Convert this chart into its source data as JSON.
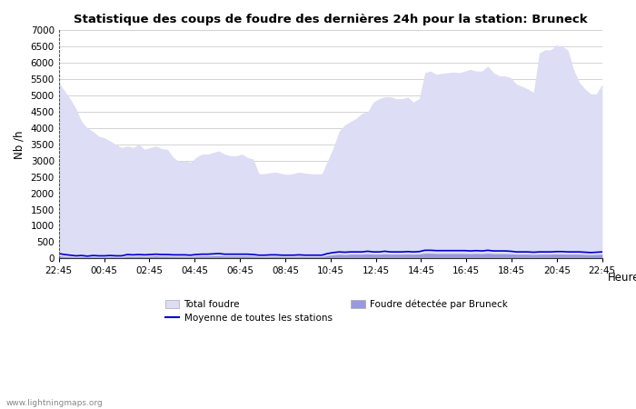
{
  "title": "Statistique des coups de foudre des dernières 24h pour la station: Bruneck",
  "xlabel": "Heure",
  "ylabel": "Nb /h",
  "watermark": "www.lightningmaps.org",
  "xtick_labels": [
    "22:45",
    "00:45",
    "02:45",
    "04:45",
    "06:45",
    "08:45",
    "10:45",
    "12:45",
    "14:45",
    "16:45",
    "18:45",
    "20:45",
    "22:45"
  ],
  "ytick_values": [
    0,
    500,
    1000,
    1500,
    2000,
    2500,
    3000,
    3500,
    4000,
    4500,
    5000,
    5500,
    6000,
    6500,
    7000
  ],
  "ylim": [
    0,
    7000
  ],
  "bg_color": "#ffffff",
  "grid_color": "#cccccc",
  "total_foudre_color": "#ddddf5",
  "bruneck_color": "#9999dd",
  "moyenne_color": "#0000cc",
  "legend_total": "Total foudre",
  "legend_moyenne": "Moyenne de toutes les stations",
  "legend_bruneck": "Foudre détectée par Bruneck",
  "x_values": [
    0,
    1,
    2,
    3,
    4,
    5,
    6,
    7,
    8,
    9,
    10,
    11,
    12,
    13,
    14,
    15,
    16,
    17,
    18,
    19,
    20,
    21,
    22,
    23,
    24,
    25,
    26,
    27,
    28,
    29,
    30,
    31,
    32,
    33,
    34,
    35,
    36,
    37,
    38,
    39,
    40,
    41,
    42,
    43,
    44,
    45,
    46,
    47,
    48,
    49,
    50,
    51,
    52,
    53,
    54,
    55,
    56,
    57,
    58,
    59,
    60,
    61,
    62,
    63,
    64,
    65,
    66,
    67,
    68,
    69,
    70,
    71,
    72,
    73,
    74,
    75,
    76,
    77,
    78,
    79,
    80,
    81,
    82,
    83,
    84,
    85,
    86,
    87,
    88,
    89,
    90,
    91,
    92,
    93,
    94,
    95
  ],
  "total_foudre": [
    5400,
    5150,
    4900,
    4600,
    4200,
    4000,
    3900,
    3750,
    3700,
    3600,
    3500,
    3400,
    3450,
    3400,
    3500,
    3350,
    3400,
    3450,
    3370,
    3350,
    3100,
    2980,
    3000,
    2950,
    3100,
    3200,
    3200,
    3250,
    3300,
    3200,
    3150,
    3150,
    3200,
    3100,
    3050,
    2600,
    2600,
    2630,
    2650,
    2600,
    2580,
    2600,
    2650,
    2620,
    2600,
    2590,
    2600,
    3000,
    3400,
    3900,
    4100,
    4200,
    4300,
    4450,
    4500,
    4800,
    4900,
    4960,
    4960,
    4900,
    4900,
    4950,
    4800,
    4900,
    5700,
    5750,
    5650,
    5680,
    5700,
    5720,
    5700,
    5750,
    5800,
    5750,
    5750,
    5900,
    5700,
    5600,
    5600,
    5550,
    5350,
    5280,
    5200,
    5100,
    6300,
    6400,
    6400,
    6550,
    6500,
    6400,
    5800,
    5400,
    5200,
    5050,
    5050,
    5350
  ],
  "bruneck": [
    80,
    60,
    50,
    40,
    50,
    40,
    50,
    40,
    40,
    50,
    40,
    40,
    70,
    60,
    70,
    60,
    70,
    80,
    70,
    70,
    60,
    60,
    60,
    55,
    70,
    75,
    75,
    80,
    85,
    75,
    75,
    75,
    75,
    75,
    70,
    55,
    55,
    60,
    60,
    55,
    55,
    55,
    60,
    55,
    55,
    55,
    55,
    90,
    110,
    130,
    115,
    130,
    130,
    130,
    140,
    130,
    130,
    140,
    130,
    130,
    130,
    135,
    130,
    135,
    160,
    160,
    150,
    150,
    150,
    150,
    150,
    150,
    145,
    150,
    145,
    160,
    145,
    145,
    145,
    140,
    130,
    130,
    130,
    120,
    130,
    130,
    130,
    135,
    135,
    130,
    130,
    130,
    120,
    115,
    120,
    130
  ],
  "moyenne": [
    150,
    120,
    100,
    80,
    90,
    70,
    90,
    80,
    80,
    90,
    80,
    80,
    120,
    110,
    120,
    110,
    120,
    130,
    120,
    120,
    110,
    110,
    110,
    100,
    120,
    130,
    130,
    140,
    150,
    130,
    130,
    130,
    130,
    130,
    120,
    100,
    100,
    110,
    110,
    100,
    100,
    100,
    110,
    100,
    100,
    100,
    100,
    150,
    180,
    200,
    190,
    200,
    200,
    200,
    220,
    200,
    200,
    220,
    200,
    200,
    200,
    210,
    200,
    210,
    250,
    250,
    240,
    240,
    240,
    240,
    240,
    240,
    230,
    240,
    230,
    250,
    230,
    230,
    230,
    220,
    200,
    200,
    200,
    190,
    200,
    200,
    200,
    210,
    210,
    200,
    200,
    200,
    190,
    180,
    190,
    200
  ]
}
